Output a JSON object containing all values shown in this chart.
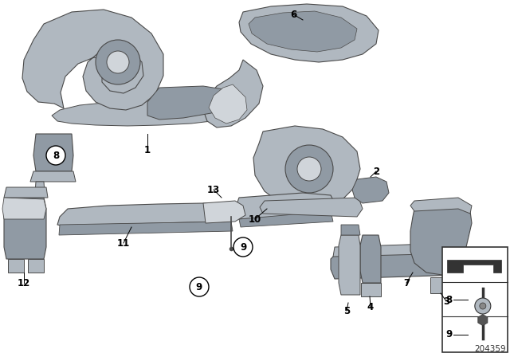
{
  "bg_color": "#ffffff",
  "part_color": "#b0b8c0",
  "part_dark": "#909aa4",
  "part_light": "#d0d5da",
  "outline_color": "#4a4a4a",
  "label_color": "#000000",
  "diagram_number": "204359"
}
